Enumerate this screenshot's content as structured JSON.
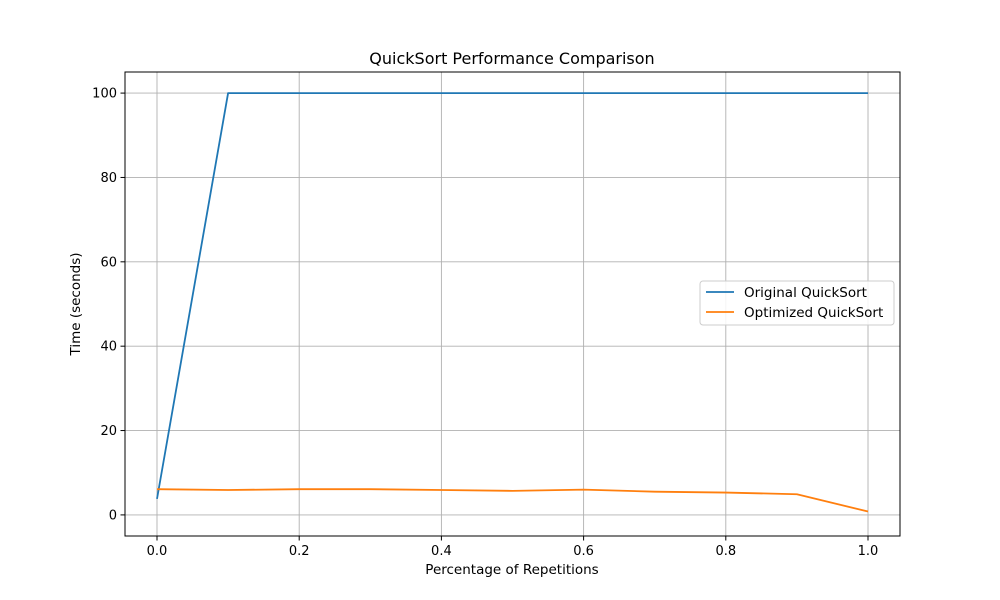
{
  "chart_data": {
    "type": "line",
    "title": "QuickSort Performance Comparison",
    "xlabel": "Percentage of Repetitions",
    "ylabel": "Time (seconds)",
    "xlim": [
      -0.045,
      1.045
    ],
    "ylim": [
      -5,
      105
    ],
    "xticks": [
      0.0,
      0.2,
      0.4,
      0.6,
      0.8,
      1.0
    ],
    "xtick_labels": [
      "0.0",
      "0.2",
      "0.4",
      "0.6",
      "0.8",
      "1.0"
    ],
    "yticks": [
      0,
      20,
      40,
      60,
      80,
      100
    ],
    "ytick_labels": [
      "0",
      "20",
      "40",
      "60",
      "80",
      "100"
    ],
    "grid": true,
    "legend_position": "center-right",
    "x": [
      0.0,
      0.1,
      0.2,
      0.3,
      0.4,
      0.5,
      0.6,
      0.7,
      0.8,
      0.9,
      1.0
    ],
    "series": [
      {
        "name": "Original QuickSort",
        "color": "#1f77b4",
        "values": [
          3.8,
          100,
          100,
          100,
          100,
          100,
          100,
          100,
          100,
          100,
          100
        ]
      },
      {
        "name": "Optimized QuickSort",
        "color": "#ff7f0e",
        "values": [
          6.1,
          5.9,
          6.1,
          6.1,
          5.9,
          5.7,
          6.0,
          5.5,
          5.3,
          4.9,
          0.8
        ]
      }
    ]
  }
}
